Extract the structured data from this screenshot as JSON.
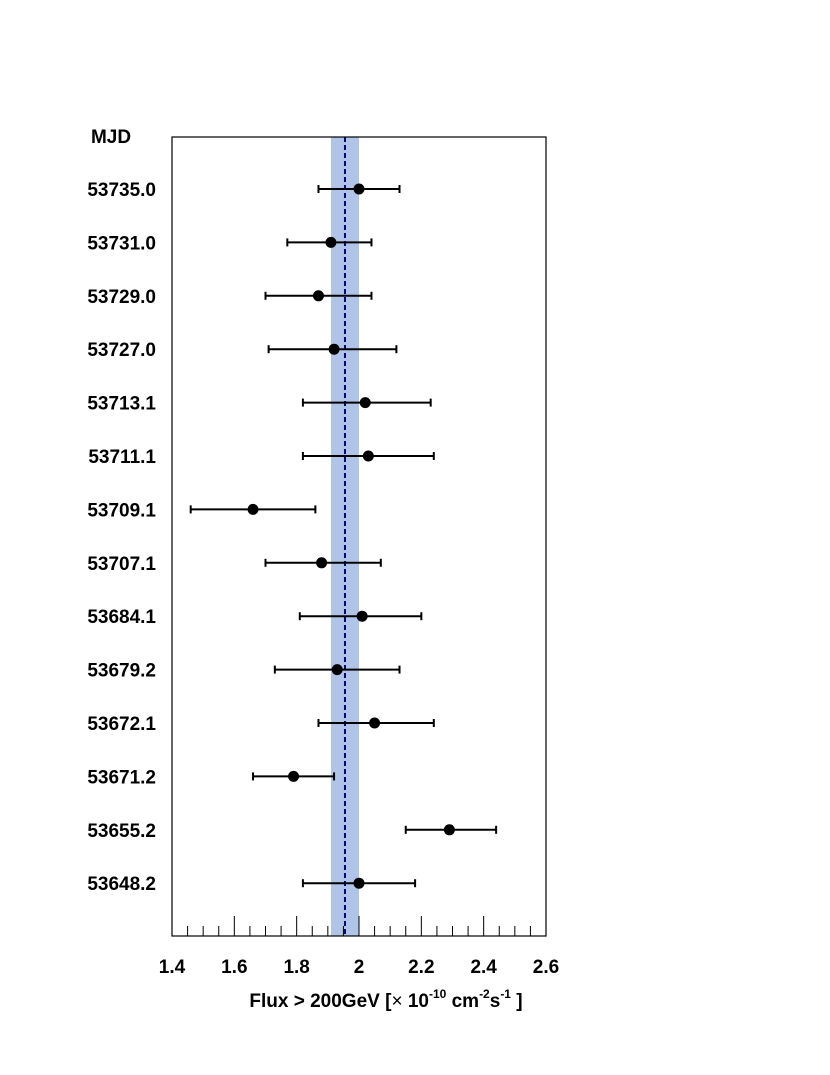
{
  "chart_data": {
    "type": "scatter",
    "orientation": "horizontal-errorbar",
    "ylabel": "MJD",
    "xlabel": {
      "prefix": "Flux > 200GeV [",
      "times": "×",
      "ten": " 10",
      "exp1": "-10",
      "unit": " cm",
      "exp2": "-2",
      "s": "s",
      "exp3": "-1",
      "suffix": " ]"
    },
    "xlim": [
      1.4,
      2.6
    ],
    "xticks": [
      "1.4",
      "1.6",
      "1.8",
      "2",
      "2.2",
      "2.4",
      "2.6"
    ],
    "xtick_values": [
      1.4,
      1.6,
      1.8,
      2.0,
      2.2,
      2.4,
      2.6
    ],
    "mean_flux": 1.955,
    "mean_band": [
      1.91,
      2.0
    ],
    "band_color": "#b0c4e8",
    "mean_line_color": "#000080",
    "marker_color": "#000000",
    "points": [
      {
        "mjd": "53735.0",
        "flux": 2.0,
        "lo": 1.87,
        "hi": 2.13
      },
      {
        "mjd": "53731.0",
        "flux": 1.91,
        "lo": 1.77,
        "hi": 2.04
      },
      {
        "mjd": "53729.0",
        "flux": 1.87,
        "lo": 1.7,
        "hi": 2.04
      },
      {
        "mjd": "53727.0",
        "flux": 1.92,
        "lo": 1.71,
        "hi": 2.12
      },
      {
        "mjd": "53713.1",
        "flux": 2.02,
        "lo": 1.82,
        "hi": 2.23
      },
      {
        "mjd": "53711.1",
        "flux": 2.03,
        "lo": 1.82,
        "hi": 2.24
      },
      {
        "mjd": "53709.1",
        "flux": 1.66,
        "lo": 1.46,
        "hi": 1.86
      },
      {
        "mjd": "53707.1",
        "flux": 1.88,
        "lo": 1.7,
        "hi": 2.07
      },
      {
        "mjd": "53684.1",
        "flux": 2.01,
        "lo": 1.81,
        "hi": 2.2
      },
      {
        "mjd": "53679.2",
        "flux": 1.93,
        "lo": 1.73,
        "hi": 2.13
      },
      {
        "mjd": "53672.1",
        "flux": 2.05,
        "lo": 1.87,
        "hi": 2.24
      },
      {
        "mjd": "53671.2",
        "flux": 1.79,
        "lo": 1.66,
        "hi": 1.92
      },
      {
        "mjd": "53655.2",
        "flux": 2.29,
        "lo": 2.15,
        "hi": 2.44
      },
      {
        "mjd": "53648.2",
        "flux": 2.0,
        "lo": 1.82,
        "hi": 2.18
      }
    ]
  }
}
